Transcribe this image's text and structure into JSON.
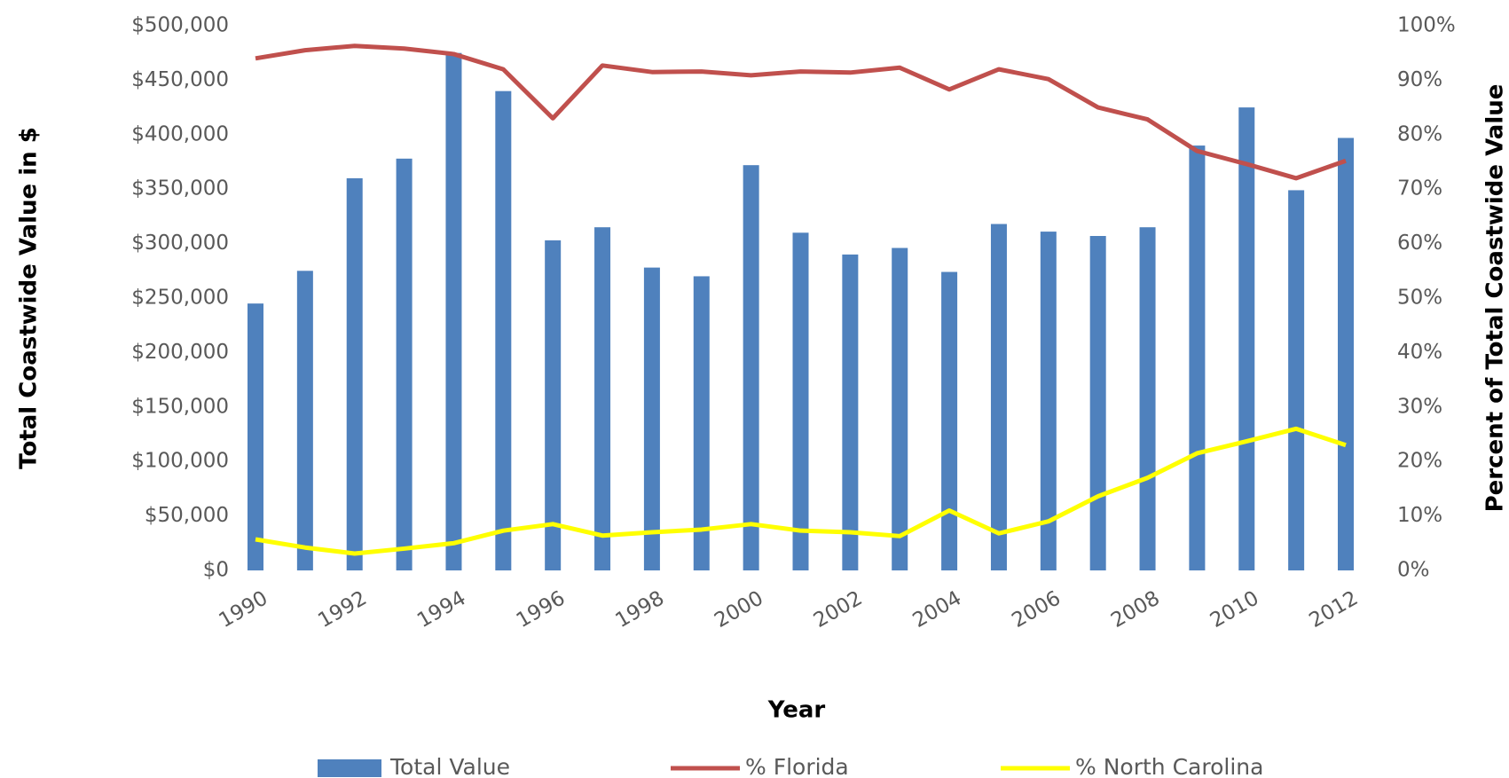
{
  "chart_data": {
    "type": "bar",
    "xlabel": "Year",
    "ylabel": "Total Coastwide Value in $",
    "y2label": "Percent of Total Coastwide Value",
    "categories": [
      "1990",
      null,
      "1992",
      null,
      "1994",
      null,
      "1996",
      null,
      "1998",
      null,
      "2000",
      null,
      "2002",
      null,
      "2004",
      null,
      "2006",
      null,
      "2008",
      null,
      "2010",
      null,
      "2012"
    ],
    "series": [
      {
        "name": "Total Value",
        "type": "bar",
        "color": "#4f81bd",
        "values": [
          245000,
          275000,
          360000,
          378000,
          475000,
          440000,
          303000,
          315000,
          278000,
          270000,
          372000,
          310000,
          290000,
          296000,
          274000,
          318000,
          311000,
          307000,
          315000,
          390000,
          425000,
          349000,
          397000
        ]
      },
      {
        "name": "% Florida",
        "type": "line",
        "axis": "y2",
        "color": "#c0504d",
        "values": [
          94,
          95.5,
          96.3,
          95.8,
          94.8,
          92,
          83,
          92.7,
          91.5,
          91.6,
          90.9,
          91.6,
          91.4,
          92.3,
          88.3,
          92,
          90.2,
          85,
          82.8,
          77,
          74.6,
          72,
          75.2
        ]
      },
      {
        "name": "% North Carolina",
        "type": "line",
        "axis": "y2",
        "color": "#ffff00",
        "values": [
          5.7,
          4.2,
          3.1,
          4,
          5,
          7.3,
          8.5,
          6.4,
          7,
          7.5,
          8.5,
          7.3,
          7,
          6.3,
          11,
          6.8,
          9,
          13.6,
          17,
          21.5,
          23.7,
          26,
          23
        ]
      }
    ],
    "ylim": [
      0,
      500000
    ],
    "yticks": [
      {
        "value": 0,
        "label": "$0"
      },
      {
        "value": 50000,
        "label": "$50,000"
      },
      {
        "value": 100000,
        "label": "$100,000"
      },
      {
        "value": 150000,
        "label": "$150,000"
      },
      {
        "value": 200000,
        "label": "$200,000"
      },
      {
        "value": 250000,
        "label": "$250,000"
      },
      {
        "value": 300000,
        "label": "$300,000"
      },
      {
        "value": 350000,
        "label": "$350,000"
      },
      {
        "value": 400000,
        "label": "$400,000"
      },
      {
        "value": 450000,
        "label": "$450,000"
      },
      {
        "value": 500000,
        "label": "$500,000"
      }
    ],
    "y2lim": [
      0,
      100
    ],
    "y2ticks": [
      {
        "value": 0,
        "label": "0%"
      },
      {
        "value": 10,
        "label": "10%"
      },
      {
        "value": 20,
        "label": "20%"
      },
      {
        "value": 30,
        "label": "30%"
      },
      {
        "value": 40,
        "label": "40%"
      },
      {
        "value": 50,
        "label": "50%"
      },
      {
        "value": 60,
        "label": "60%"
      },
      {
        "value": 70,
        "label": "70%"
      },
      {
        "value": 80,
        "label": "80%"
      },
      {
        "value": 90,
        "label": "90%"
      },
      {
        "value": 100,
        "label": "100%"
      }
    ],
    "grid": false,
    "legend": "bottom"
  }
}
